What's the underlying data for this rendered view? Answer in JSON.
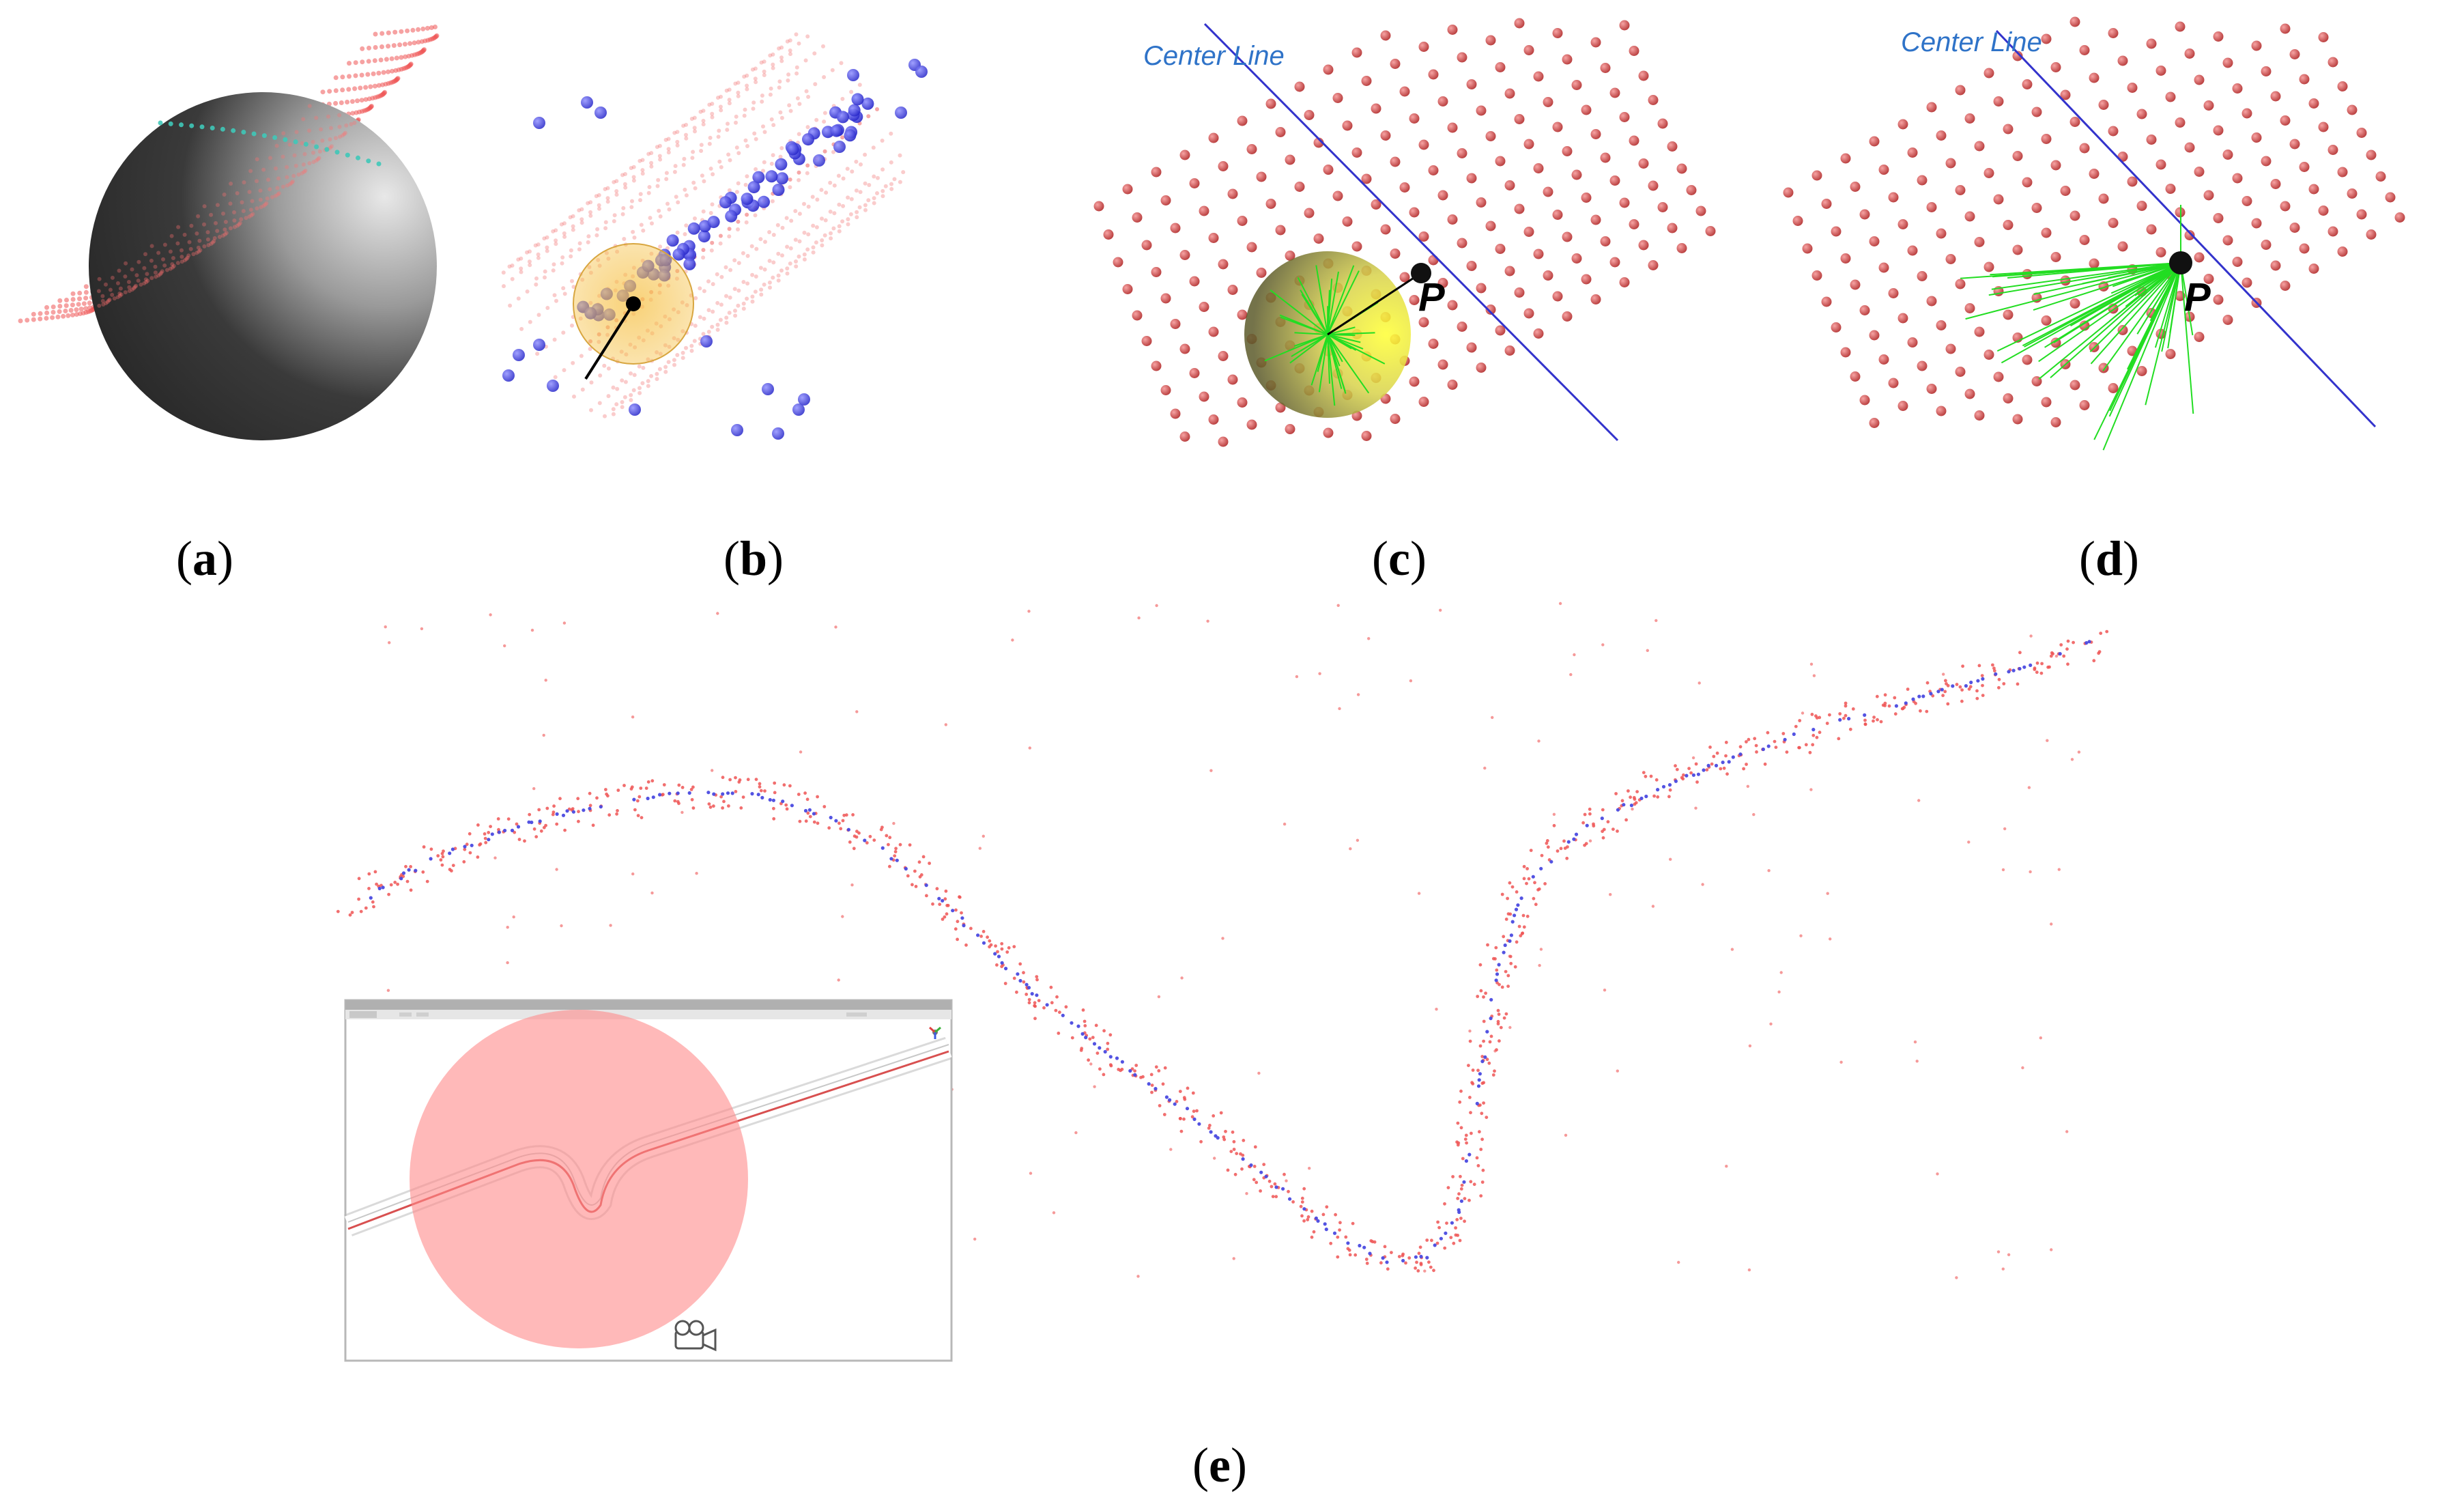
{
  "panels": [
    {
      "id": "a",
      "caption_open": "(",
      "caption_letter": "a",
      "caption_close": ")"
    },
    {
      "id": "b",
      "caption_open": "(",
      "caption_letter": "b",
      "caption_close": ")"
    },
    {
      "id": "c",
      "caption_open": "(",
      "caption_letter": "c",
      "caption_close": ")",
      "center_line_label": "Center Line",
      "point_label": "P"
    },
    {
      "id": "d",
      "caption_open": "(",
      "caption_letter": "d",
      "caption_close": ")",
      "center_line_label": "Center Line",
      "point_label": "P"
    },
    {
      "id": "e",
      "caption_open": "(",
      "caption_letter": "e",
      "caption_close": ")"
    }
  ],
  "colors": {
    "red_points": "#ee5555",
    "blue_points": "#4a4ae0",
    "green_rays": "#22dd22",
    "center_line": "#3333cc",
    "sphere_highlight": "#f6c24a",
    "inset_circle": "#ffb3b3"
  }
}
